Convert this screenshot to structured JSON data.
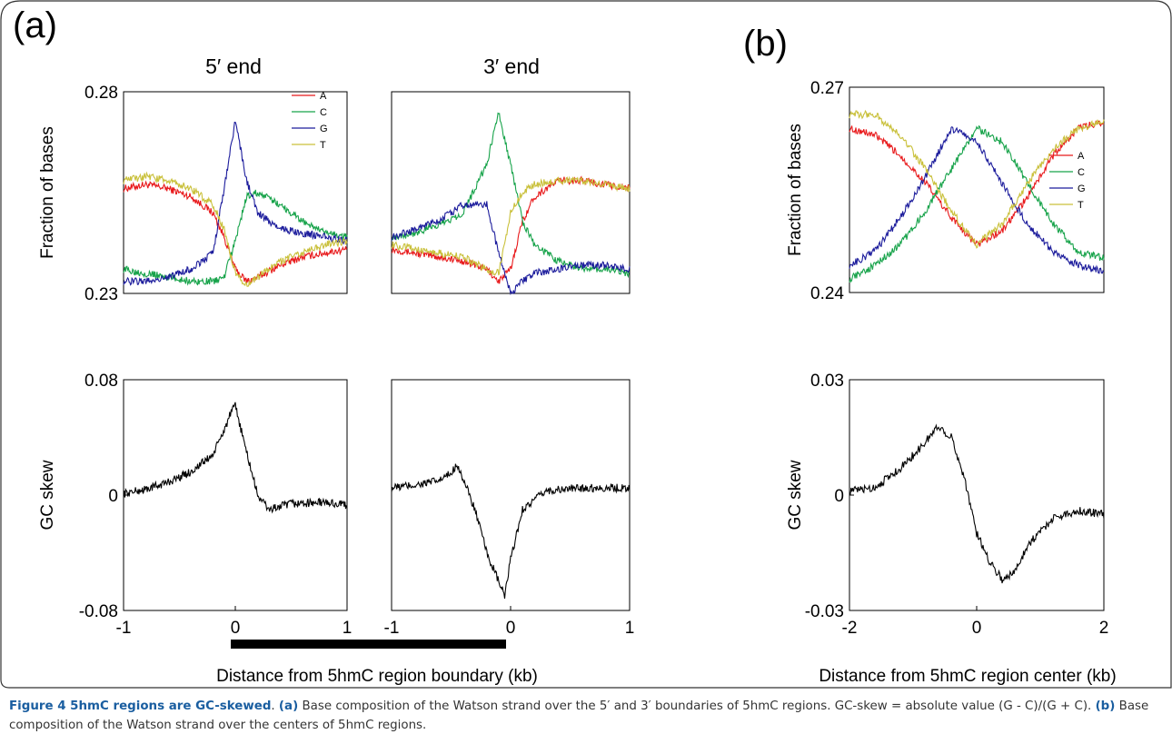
{
  "panels": {
    "a": "(a)",
    "b": "(b)"
  },
  "col_titles": {
    "five_end": "5′ end",
    "three_end": "3′ end"
  },
  "xlabels": {
    "a": "Distance from 5hmC region boundary (kb)",
    "b": "Distance from 5hmC region center (kb)"
  },
  "caption": {
    "title": "Figure 4 5hmC regions are GC-skewed",
    "sep": ". ",
    "a_tag": "(a)",
    "a_text": " Base composition of the Watson strand over the 5′ and 3′ boundaries of 5hmC regions. GC-skew = absolute value (G - C)/(G + C). ",
    "b_tag": "(b)",
    "b_text": " Base composition of the Watson strand over the centers of 5hmC regions."
  },
  "colors": {
    "A": "#e8191b",
    "C": "#17a34a",
    "G": "#1c1c9c",
    "T": "#c9c03a",
    "skew": "#000000",
    "bar": "#000000"
  },
  "chart_data": [
    {
      "type": "line",
      "panel": "(a)",
      "position": "top-left",
      "title": "5′ end",
      "ylabel": "Fraction of bases",
      "ylim": [
        0.23,
        0.28
      ],
      "yticks": [
        "0.28",
        "0.23"
      ],
      "xlim": [
        -1,
        1
      ],
      "legend": "top-right",
      "series": [
        {
          "name": "A",
          "x": [
            -1,
            -0.8,
            -0.6,
            -0.4,
            -0.2,
            -0.1,
            0,
            0.1,
            0.2,
            0.4,
            0.6,
            0.8,
            1
          ],
          "y": [
            0.256,
            0.257,
            0.256,
            0.254,
            0.25,
            0.244,
            0.236,
            0.233,
            0.234,
            0.237,
            0.239,
            0.24,
            0.241
          ]
        },
        {
          "name": "C",
          "x": [
            -1,
            -0.8,
            -0.6,
            -0.4,
            -0.2,
            -0.1,
            0,
            0.1,
            0.2,
            0.4,
            0.6,
            0.8,
            1
          ],
          "y": [
            0.236,
            0.235,
            0.234,
            0.233,
            0.233,
            0.234,
            0.243,
            0.254,
            0.255,
            0.252,
            0.248,
            0.245,
            0.244
          ]
        },
        {
          "name": "G",
          "x": [
            -1,
            -0.8,
            -0.6,
            -0.4,
            -0.2,
            -0.1,
            0,
            0.1,
            0.2,
            0.4,
            0.6,
            0.8,
            1
          ],
          "y": [
            0.233,
            0.233,
            0.234,
            0.236,
            0.24,
            0.256,
            0.273,
            0.258,
            0.25,
            0.246,
            0.245,
            0.244,
            0.243
          ]
        },
        {
          "name": "T",
          "x": [
            -1,
            -0.8,
            -0.6,
            -0.4,
            -0.2,
            -0.1,
            0,
            0.1,
            0.2,
            0.4,
            0.6,
            0.8,
            1
          ],
          "y": [
            0.258,
            0.259,
            0.258,
            0.256,
            0.252,
            0.246,
            0.235,
            0.232,
            0.234,
            0.238,
            0.24,
            0.242,
            0.243
          ]
        }
      ]
    },
    {
      "type": "line",
      "panel": "(a)",
      "position": "top-right",
      "title": "3′ end",
      "ylim": [
        0.23,
        0.28
      ],
      "xlim": [
        -1,
        1
      ],
      "series": [
        {
          "name": "A",
          "x": [
            -1,
            -0.8,
            -0.6,
            -0.4,
            -0.2,
            -0.1,
            0,
            0.1,
            0.2,
            0.4,
            0.6,
            0.8,
            1
          ],
          "y": [
            0.241,
            0.24,
            0.239,
            0.238,
            0.236,
            0.233,
            0.236,
            0.248,
            0.254,
            0.258,
            0.258,
            0.257,
            0.256
          ]
        },
        {
          "name": "C",
          "x": [
            -1,
            -0.8,
            -0.6,
            -0.4,
            -0.2,
            -0.1,
            0,
            0.1,
            0.2,
            0.4,
            0.6,
            0.8,
            1
          ],
          "y": [
            0.244,
            0.245,
            0.247,
            0.25,
            0.262,
            0.275,
            0.262,
            0.248,
            0.242,
            0.238,
            0.236,
            0.236,
            0.235
          ]
        },
        {
          "name": "G",
          "x": [
            -1,
            -0.8,
            -0.6,
            -0.4,
            -0.2,
            -0.1,
            0,
            0.1,
            0.2,
            0.4,
            0.6,
            0.8,
            1
          ],
          "y": [
            0.244,
            0.246,
            0.248,
            0.252,
            0.252,
            0.24,
            0.23,
            0.233,
            0.235,
            0.236,
            0.237,
            0.237,
            0.236
          ]
        },
        {
          "name": "T",
          "x": [
            -1,
            -0.8,
            -0.6,
            -0.4,
            -0.2,
            -0.1,
            0,
            0.1,
            0.2,
            0.4,
            0.6,
            0.8,
            1
          ],
          "y": [
            0.242,
            0.241,
            0.24,
            0.239,
            0.236,
            0.235,
            0.25,
            0.255,
            0.257,
            0.258,
            0.258,
            0.257,
            0.256
          ]
        }
      ]
    },
    {
      "type": "line",
      "panel": "(a)",
      "position": "bottom-left",
      "ylabel": "GC skew",
      "ylim": [
        -0.08,
        0.08
      ],
      "yticks": [
        "0.08",
        "0",
        "-0.08"
      ],
      "xlim": [
        -1,
        1
      ],
      "xticks": [
        "-1",
        "0",
        "1"
      ],
      "series": [
        {
          "name": "",
          "x": [
            -1,
            -0.8,
            -0.6,
            -0.4,
            -0.2,
            -0.1,
            -0.05,
            0,
            0.1,
            0.2,
            0.3,
            0.5,
            0.8,
            1
          ],
          "y": [
            0.001,
            0.004,
            0.009,
            0.016,
            0.028,
            0.045,
            0.055,
            0.062,
            0.03,
            0.0,
            -0.01,
            -0.006,
            -0.005,
            -0.007
          ]
        }
      ]
    },
    {
      "type": "line",
      "panel": "(a)",
      "position": "bottom-right",
      "ylim": [
        -0.08,
        0.08
      ],
      "xlim": [
        -1,
        1
      ],
      "xticks": [
        "-1",
        "0",
        "1"
      ],
      "series": [
        {
          "name": "",
          "x": [
            -1,
            -0.8,
            -0.6,
            -0.5,
            -0.45,
            -0.3,
            -0.2,
            -0.1,
            -0.05,
            0,
            0.1,
            0.3,
            0.6,
            1
          ],
          "y": [
            0.005,
            0.007,
            0.01,
            0.015,
            0.022,
            -0.01,
            -0.04,
            -0.06,
            -0.07,
            -0.045,
            -0.01,
            0.003,
            0.005,
            0.005
          ]
        }
      ]
    },
    {
      "type": "line",
      "panel": "(b)",
      "position": "top",
      "ylabel": "Fraction of bases",
      "ylim": [
        0.24,
        0.27
      ],
      "yticks": [
        "0.27",
        "0.24"
      ],
      "xlim": [
        -2,
        2
      ],
      "legend": "right",
      "series": [
        {
          "name": "A",
          "x": [
            -2,
            -1.6,
            -1.2,
            -0.8,
            -0.4,
            0,
            0.4,
            0.8,
            1.2,
            1.6,
            2
          ],
          "y": [
            0.264,
            0.263,
            0.26,
            0.256,
            0.251,
            0.247,
            0.249,
            0.254,
            0.26,
            0.264,
            0.265
          ]
        },
        {
          "name": "C",
          "x": [
            -2,
            -1.6,
            -1.2,
            -0.8,
            -0.4,
            0,
            0.4,
            0.8,
            1.2,
            1.6,
            2
          ],
          "y": [
            0.242,
            0.244,
            0.247,
            0.252,
            0.258,
            0.264,
            0.262,
            0.256,
            0.25,
            0.246,
            0.245
          ]
        },
        {
          "name": "G",
          "x": [
            -2,
            -1.6,
            -1.2,
            -0.8,
            -0.4,
            0,
            0.4,
            0.8,
            1.2,
            1.6,
            2
          ],
          "y": [
            0.244,
            0.246,
            0.251,
            0.257,
            0.264,
            0.262,
            0.256,
            0.25,
            0.246,
            0.244,
            0.243
          ]
        },
        {
          "name": "T",
          "x": [
            -2,
            -1.6,
            -1.2,
            -0.8,
            -0.4,
            0,
            0.4,
            0.8,
            1.2,
            1.6,
            2
          ],
          "y": [
            0.266,
            0.266,
            0.263,
            0.258,
            0.252,
            0.247,
            0.25,
            0.256,
            0.261,
            0.264,
            0.265
          ]
        }
      ]
    },
    {
      "type": "line",
      "panel": "(b)",
      "position": "bottom",
      "ylabel": "GC skew",
      "ylim": [
        -0.03,
        0.03
      ],
      "yticks": [
        "0.03",
        "0",
        "-0.03"
      ],
      "xlim": [
        -2,
        2
      ],
      "xticks": [
        "-2",
        "0",
        "2"
      ],
      "series": [
        {
          "name": "",
          "x": [
            -2,
            -1.6,
            -1.2,
            -0.9,
            -0.6,
            -0.4,
            -0.2,
            0,
            0.2,
            0.4,
            0.6,
            0.8,
            1.2,
            1.6,
            2
          ],
          "y": [
            0.001,
            0.002,
            0.007,
            0.012,
            0.018,
            0.015,
            0.005,
            -0.01,
            -0.017,
            -0.022,
            -0.02,
            -0.013,
            -0.006,
            -0.004,
            -0.005
          ]
        }
      ]
    }
  ]
}
